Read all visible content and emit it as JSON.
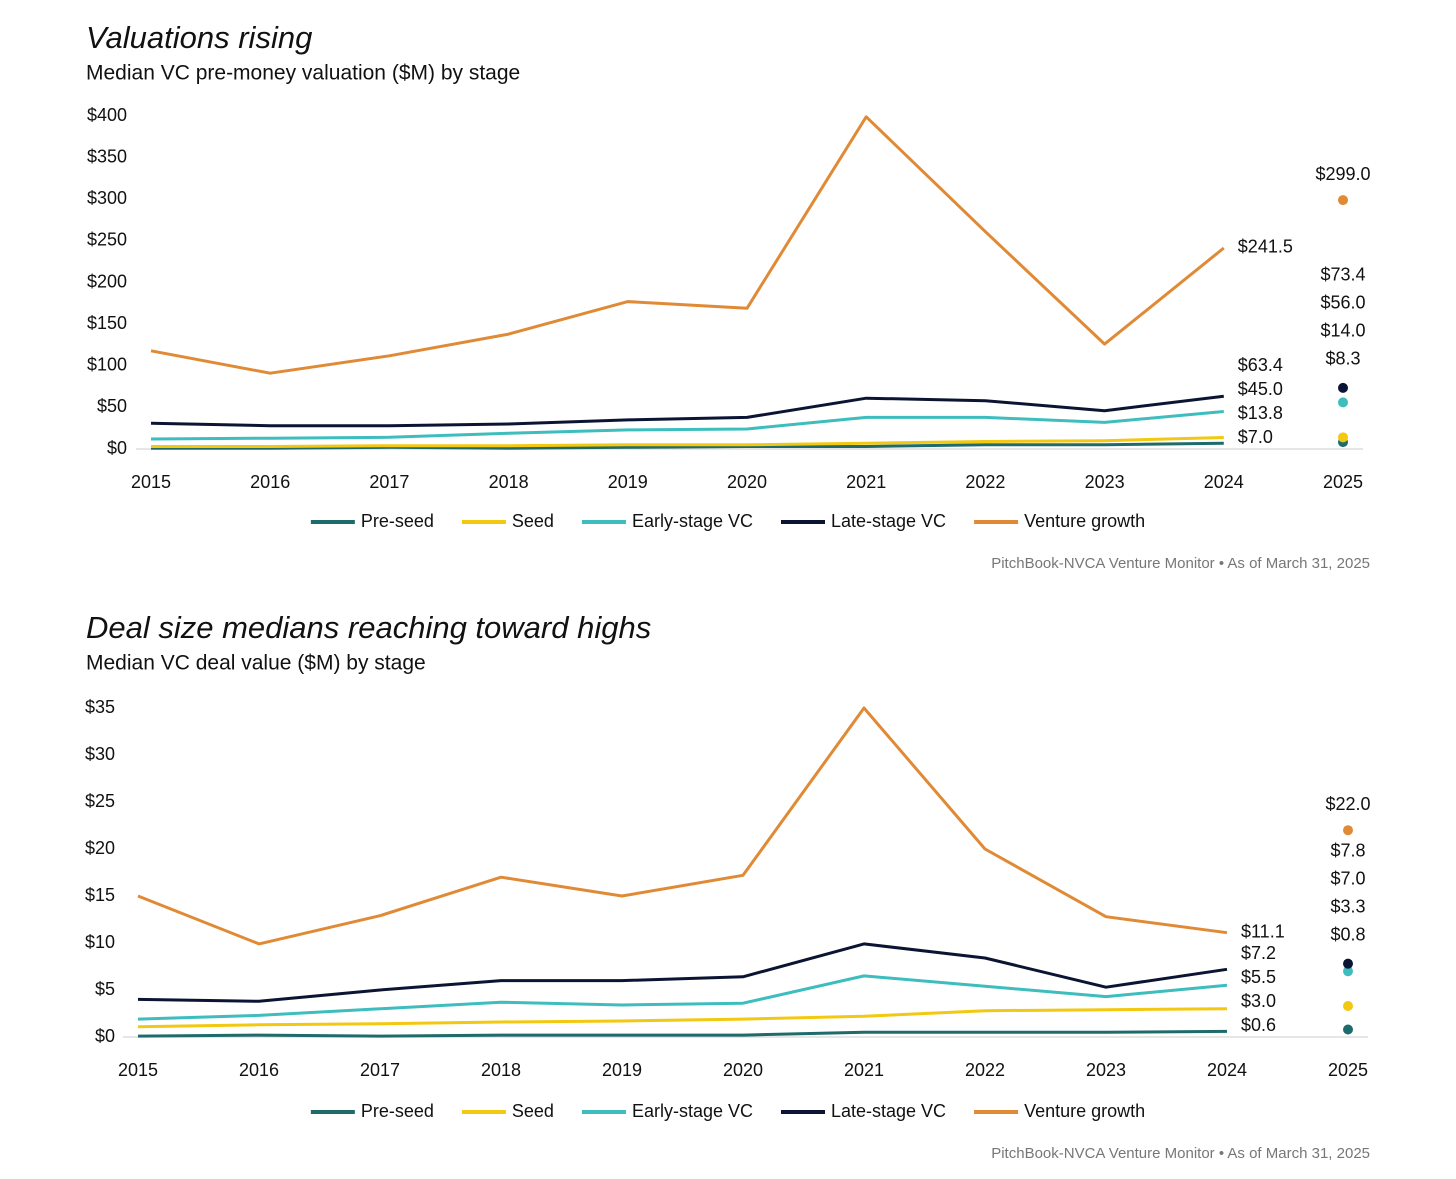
{
  "chart_data": [
    {
      "type": "line",
      "title": "Valuations rising",
      "subtitle": "Median VC pre-money valuation ($M) by stage",
      "source": "PitchBook-NVCA Venture Monitor  •  As of March 31, 2025",
      "categories": [
        "2015",
        "2016",
        "2017",
        "2018",
        "2019",
        "2020",
        "2021",
        "2022",
        "2023",
        "2024",
        "2025"
      ],
      "last_point_separate": true,
      "grid": false,
      "legend": "bottom",
      "ylim": [
        0,
        400
      ],
      "yticks": [
        {
          "value": 0,
          "label": "$0"
        },
        {
          "value": 50,
          "label": "$50"
        },
        {
          "value": 100,
          "label": "$100"
        },
        {
          "value": 150,
          "label": "$150"
        },
        {
          "value": 200,
          "label": "$200"
        },
        {
          "value": 250,
          "label": "$250"
        },
        {
          "value": 300,
          "label": "$300"
        },
        {
          "value": 350,
          "label": "$350"
        },
        {
          "value": 400,
          "label": "$400"
        }
      ],
      "series": [
        {
          "name": "Pre-seed",
          "color": "#1f6b6b",
          "values": [
            1,
            1,
            2,
            1,
            2,
            3,
            3,
            5,
            5,
            7.0,
            8.3
          ],
          "value_labels": [
            null,
            null,
            null,
            null,
            null,
            null,
            null,
            null,
            null,
            "$7.0",
            "$8.3"
          ]
        },
        {
          "name": "Seed",
          "color": "#f2c811",
          "values": [
            3,
            3,
            4,
            4,
            5,
            5,
            7,
            9,
            10,
            13.8,
            14.0
          ],
          "value_labels": [
            null,
            null,
            null,
            null,
            null,
            null,
            null,
            null,
            null,
            "$13.8",
            "$14.0"
          ]
        },
        {
          "name": "Early-stage VC",
          "color": "#3dbdbd",
          "values": [
            12,
            13,
            14,
            19,
            23,
            24,
            38,
            38,
            32,
            45.0,
            56.0
          ],
          "value_labels": [
            null,
            null,
            null,
            null,
            null,
            null,
            null,
            null,
            null,
            "$45.0",
            "$56.0"
          ]
        },
        {
          "name": "Late-stage VC",
          "color": "#0b1533",
          "values": [
            31,
            28,
            28,
            30,
            35,
            38,
            61,
            58,
            46,
            63.4,
            73.4
          ],
          "value_labels": [
            null,
            null,
            null,
            null,
            null,
            null,
            null,
            null,
            null,
            "$63.4",
            "$73.4"
          ]
        },
        {
          "name": "Venture growth",
          "color": "#e08a36",
          "values": [
            118,
            91,
            112,
            138,
            177,
            169,
            399,
            261,
            126,
            241.5,
            299.0
          ],
          "value_labels": [
            null,
            null,
            null,
            null,
            null,
            null,
            null,
            null,
            null,
            "$241.5",
            "$299.0"
          ]
        }
      ]
    },
    {
      "type": "line",
      "title": "Deal size medians reaching toward highs",
      "subtitle": "Median VC deal value ($M) by stage",
      "source": "PitchBook-NVCA Venture Monitor  •  As of March 31, 2025",
      "categories": [
        "2015",
        "2016",
        "2017",
        "2018",
        "2019",
        "2020",
        "2021",
        "2022",
        "2023",
        "2024",
        "2025"
      ],
      "last_point_separate": true,
      "grid": false,
      "legend": "bottom",
      "ylim": [
        0,
        35
      ],
      "yticks": [
        {
          "value": 0,
          "label": "$0"
        },
        {
          "value": 5,
          "label": "$5"
        },
        {
          "value": 10,
          "label": "$10"
        },
        {
          "value": 15,
          "label": "$15"
        },
        {
          "value": 20,
          "label": "$20"
        },
        {
          "value": 25,
          "label": "$25"
        },
        {
          "value": 30,
          "label": "$30"
        },
        {
          "value": 35,
          "label": "$35"
        }
      ],
      "series": [
        {
          "name": "Pre-seed",
          "color": "#1f6b6b",
          "values": [
            0.1,
            0.2,
            0.1,
            0.2,
            0.2,
            0.2,
            0.5,
            0.5,
            0.5,
            0.6,
            0.8
          ],
          "value_labels": [
            null,
            null,
            null,
            null,
            null,
            null,
            null,
            null,
            null,
            "$0.6",
            "$0.8"
          ]
        },
        {
          "name": "Seed",
          "color": "#f2c811",
          "values": [
            1.1,
            1.3,
            1.4,
            1.6,
            1.7,
            1.9,
            2.2,
            2.8,
            2.9,
            3.0,
            3.3
          ],
          "value_labels": [
            null,
            null,
            null,
            null,
            null,
            null,
            null,
            null,
            null,
            "$3.0",
            "$3.3"
          ]
        },
        {
          "name": "Early-stage VC",
          "color": "#3dbdbd",
          "values": [
            1.9,
            2.3,
            3.0,
            3.7,
            3.4,
            3.6,
            6.5,
            5.4,
            4.3,
            5.5,
            7.0
          ],
          "value_labels": [
            null,
            null,
            null,
            null,
            null,
            null,
            null,
            null,
            null,
            "$5.5",
            "$7.0"
          ]
        },
        {
          "name": "Late-stage VC",
          "color": "#0b1533",
          "values": [
            4.0,
            3.8,
            5.0,
            6.0,
            6.0,
            6.4,
            9.9,
            8.4,
            5.3,
            7.2,
            7.8
          ],
          "value_labels": [
            null,
            null,
            null,
            null,
            null,
            null,
            null,
            null,
            null,
            "$7.2",
            "$7.8"
          ]
        },
        {
          "name": "Venture growth",
          "color": "#e08a36",
          "values": [
            15.0,
            9.9,
            12.9,
            17.0,
            15.0,
            17.2,
            35.0,
            20.0,
            12.8,
            11.1,
            22.0
          ],
          "value_labels": [
            null,
            null,
            null,
            null,
            null,
            null,
            null,
            null,
            null,
            "$11.1",
            "$22.0"
          ]
        }
      ]
    }
  ]
}
